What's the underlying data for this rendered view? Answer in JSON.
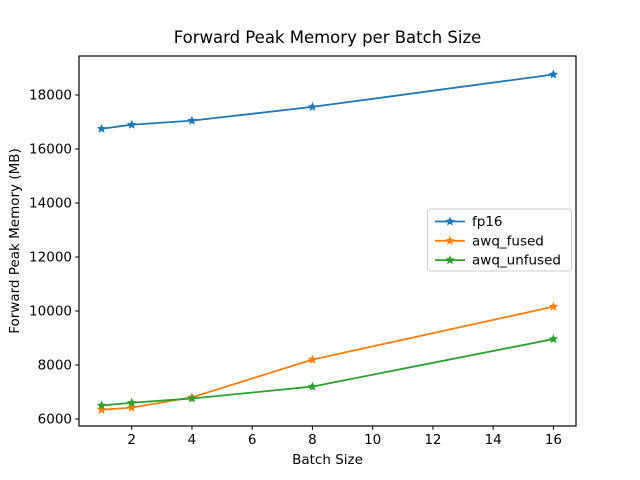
{
  "figure": {
    "background": "#ffffff",
    "spine_color": "#000000",
    "legend_border_color": "#cccccc"
  },
  "chart_data": {
    "type": "line",
    "title": "Forward Peak Memory per Batch Size",
    "xlabel": "Batch Size",
    "ylabel": "Forward Peak Memory (MB)",
    "x": [
      1,
      2,
      4,
      8,
      16
    ],
    "series": [
      {
        "name": "fp16",
        "color": "#1f77b4",
        "values": [
          16750,
          16900,
          17050,
          17560,
          18760
        ]
      },
      {
        "name": "awq_fused",
        "color": "#ff7f0e",
        "values": [
          6340,
          6420,
          6800,
          8200,
          10160
        ]
      },
      {
        "name": "awq_unfused",
        "color": "#2ca02c",
        "values": [
          6500,
          6600,
          6760,
          7200,
          8960
        ]
      }
    ],
    "xlim": [
      0.25,
      16.75
    ],
    "ylim": [
      5740,
      19445
    ],
    "xticks": [
      2,
      4,
      6,
      8,
      10,
      12,
      14,
      16
    ],
    "yticks": [
      6000,
      8000,
      10000,
      12000,
      14000,
      16000,
      18000
    ],
    "grid": false,
    "marker": "star",
    "legend_position": "center-right",
    "legend_entries": [
      "fp16",
      "awq_fused",
      "awq_unfused"
    ]
  }
}
